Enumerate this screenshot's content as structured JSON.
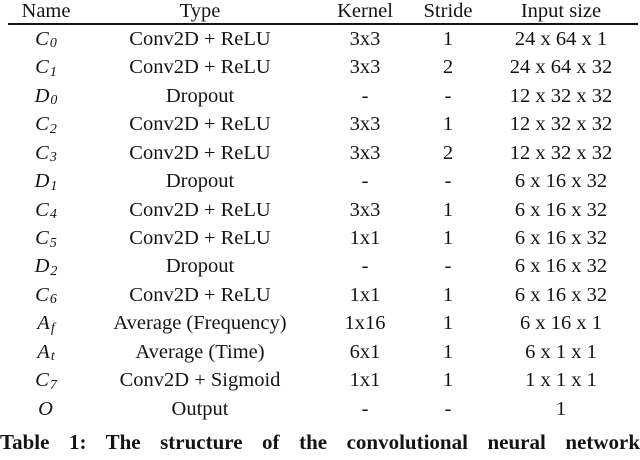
{
  "table": {
    "header": {
      "name": "Name",
      "type": "Type",
      "kernel": "Kernel",
      "stride": "Stride",
      "input": "Input size"
    },
    "rows": [
      {
        "base": "C",
        "sub": "0",
        "type": "Conv2D + ReLU",
        "kernel": "3x3",
        "stride": "1",
        "input": "24 x 64 x 1"
      },
      {
        "base": "C",
        "sub": "1",
        "type": "Conv2D + ReLU",
        "kernel": "3x3",
        "stride": "2",
        "input": "24 x 64 x 32"
      },
      {
        "base": "D",
        "sub": "0",
        "type": "Dropout",
        "kernel": "-",
        "stride": "-",
        "input": "12 x 32 x 32"
      },
      {
        "base": "C",
        "sub": "2",
        "type": "Conv2D + ReLU",
        "kernel": "3x3",
        "stride": "1",
        "input": "12 x 32 x 32"
      },
      {
        "base": "C",
        "sub": "3",
        "type": "Conv2D + ReLU",
        "kernel": "3x3",
        "stride": "2",
        "input": "12 x 32 x 32"
      },
      {
        "base": "D",
        "sub": "1",
        "type": "Dropout",
        "kernel": "-",
        "stride": "-",
        "input": "6 x 16 x 32"
      },
      {
        "base": "C",
        "sub": "4",
        "type": "Conv2D + ReLU",
        "kernel": "3x3",
        "stride": "1",
        "input": "6 x 16 x 32"
      },
      {
        "base": "C",
        "sub": "5",
        "type": "Conv2D + ReLU",
        "kernel": "1x1",
        "stride": "1",
        "input": "6 x 16 x 32"
      },
      {
        "base": "D",
        "sub": "2",
        "type": "Dropout",
        "kernel": "-",
        "stride": "-",
        "input": "6 x 16 x 32"
      },
      {
        "base": "C",
        "sub": "6",
        "type": "Conv2D + ReLU",
        "kernel": "1x1",
        "stride": "1",
        "input": "6 x 16 x 32"
      },
      {
        "base": "A",
        "sub": "f",
        "type": "Average (Frequency)",
        "kernel": "1x16",
        "stride": "1",
        "input": "6 x 16 x 1"
      },
      {
        "base": "A",
        "sub": "t",
        "type": "Average (Time)",
        "kernel": "6x1",
        "stride": "1",
        "input": "6 x 1 x 1"
      },
      {
        "base": "C",
        "sub": "7",
        "type": "Conv2D + Sigmoid",
        "kernel": "1x1",
        "stride": "1",
        "input": "1 x 1 x 1"
      },
      {
        "base": "O",
        "sub": "",
        "type": "Output",
        "kernel": "-",
        "stride": "-",
        "input": "1"
      }
    ],
    "caption": "Table 1: The structure of the convolutional neural network"
  }
}
